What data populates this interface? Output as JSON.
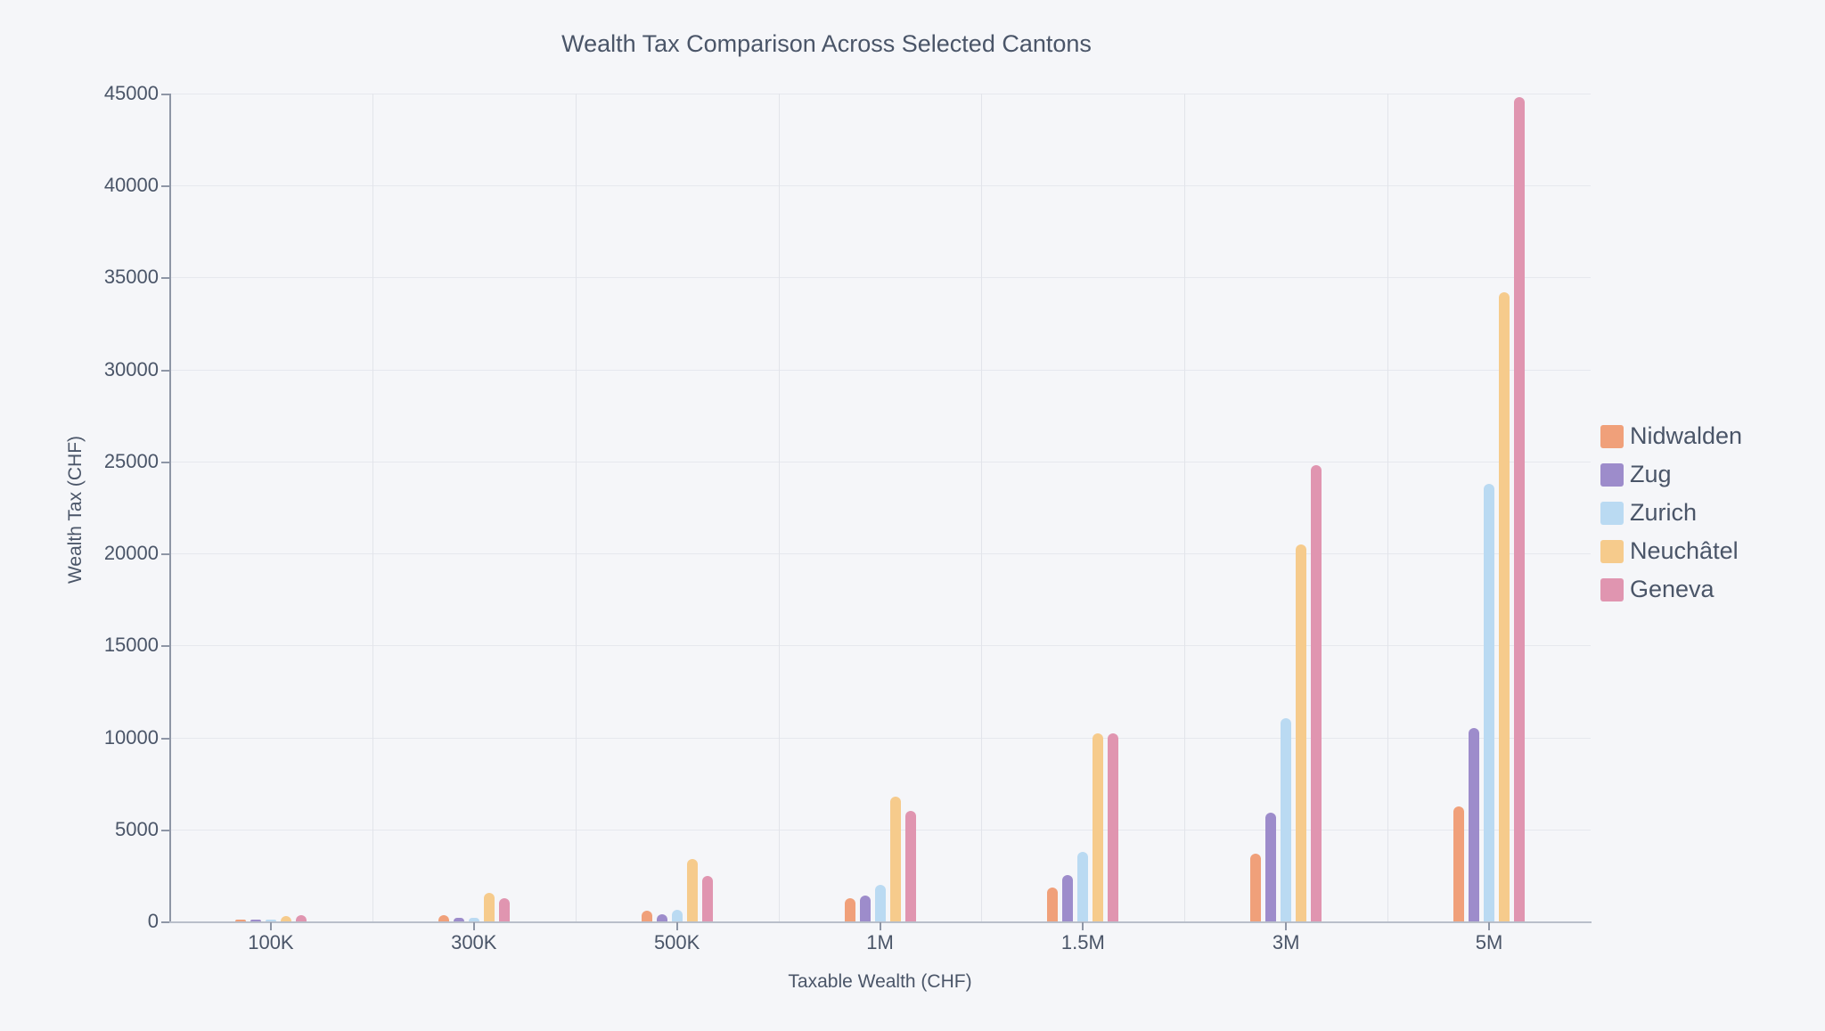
{
  "chart_data": {
    "type": "bar",
    "title": "Wealth Tax Comparison Across Selected Cantons",
    "xlabel": "Taxable Wealth (CHF)",
    "ylabel": "Wealth Tax (CHF)",
    "ylim": [
      0,
      45000
    ],
    "yticks": [
      "0",
      "5000",
      "10000",
      "15000",
      "20000",
      "25000",
      "30000",
      "35000",
      "40000",
      "45000"
    ],
    "grid": true,
    "legend_position": "right",
    "categories": [
      "100K",
      "300K",
      "500K",
      "1M",
      "1.5M",
      "3M",
      "5M"
    ],
    "series": [
      {
        "name": "Nidwalden",
        "color": "#f0a07a",
        "values": [
          100,
          350,
          600,
          1250,
          1850,
          3700,
          6250
        ]
      },
      {
        "name": "Zug",
        "color": "#9d8ccb",
        "values": [
          50,
          200,
          400,
          1400,
          2500,
          5900,
          10500
        ]
      },
      {
        "name": "Zurich",
        "color": "#badaf2",
        "values": [
          20,
          200,
          650,
          2000,
          3800,
          11050,
          23800
        ]
      },
      {
        "name": "Neuchâtel",
        "color": "#f6cb8c",
        "values": [
          300,
          1550,
          3400,
          6800,
          10200,
          20500,
          34200
        ]
      },
      {
        "name": "Geneva",
        "color": "#e095b0",
        "values": [
          350,
          1250,
          2450,
          6000,
          10200,
          24800,
          44800
        ]
      }
    ]
  }
}
